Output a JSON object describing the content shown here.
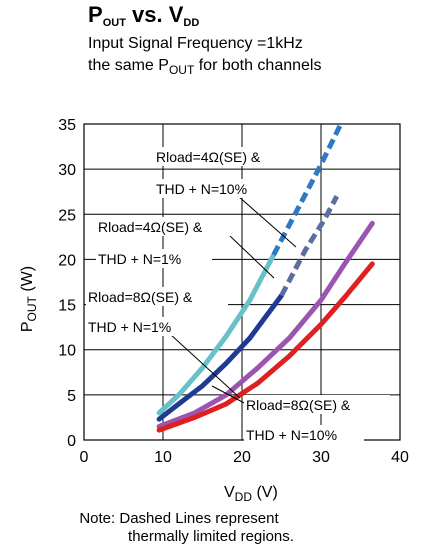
{
  "title": {
    "p": "P",
    "p_sub": "OUT",
    "vs": " vs. V",
    "v_sub": "DD"
  },
  "subtitle": {
    "line1": "Input Signal Frequency =1kHz",
    "line2_pre": "the same P",
    "line2_sub": "OUT",
    "line2_post": " for both channels"
  },
  "axis_labels": {
    "x_main": "V",
    "x_sub": "DD",
    "x_unit": " (V)",
    "y_main": "P",
    "y_sub": "OUT",
    "y_unit": " (W)"
  },
  "note": {
    "line1": "Note: Dashed Lines represent",
    "line2": "thermally limited regions."
  },
  "chart_data": {
    "type": "line",
    "title": "POUT vs. VDD",
    "subtitle": "Input Signal Frequency =1kHz, the same POUT for both channels",
    "xlabel": "VDD (V)",
    "ylabel": "POUT (W)",
    "xlim": [
      0,
      40
    ],
    "ylim": [
      0,
      35
    ],
    "xticks": [
      0,
      10,
      20,
      30,
      40
    ],
    "yticks": [
      0,
      5,
      10,
      15,
      20,
      25,
      30,
      35
    ],
    "grid": true,
    "series": [
      {
        "name": "Rload=4Ω(SE) & THD + N=10%",
        "color": "#66c2c8",
        "points": [
          [
            9.5,
            3.0
          ],
          [
            12,
            5.0
          ],
          [
            15,
            8.0
          ],
          [
            18,
            11.5
          ],
          [
            21,
            15.5
          ],
          [
            24,
            20.5
          ]
        ],
        "dashed_color": "#2f79c4",
        "dashed_points": [
          [
            24,
            20.5
          ],
          [
            27,
            25.5
          ],
          [
            30,
            30.5
          ],
          [
            32.5,
            35
          ]
        ]
      },
      {
        "name": "Rload=4Ω(SE) & THD + N=1%",
        "color": "#1f3a93",
        "points": [
          [
            9.5,
            2.3
          ],
          [
            12,
            4.0
          ],
          [
            15,
            6.0
          ],
          [
            18,
            8.5
          ],
          [
            21,
            11.3
          ],
          [
            25,
            16.0
          ]
        ],
        "dashed_color": "#5b6f9e",
        "dashed_points": [
          [
            25,
            16.0
          ],
          [
            28,
            21.0
          ],
          [
            30.5,
            24.5
          ],
          [
            32,
            27.0
          ]
        ]
      },
      {
        "name": "Rload=8Ω(SE) & THD + N=1%",
        "color": "#9b55b0",
        "points": [
          [
            9.5,
            1.5
          ],
          [
            14,
            3.0
          ],
          [
            18,
            5.0
          ],
          [
            22,
            8.0
          ],
          [
            26,
            11.3
          ],
          [
            30,
            15.5
          ],
          [
            33,
            19.5
          ],
          [
            36.5,
            24.0
          ]
        ]
      },
      {
        "name": "Rload=8Ω(SE) & THD + N=10%",
        "color": "#e02020",
        "points": [
          [
            9.5,
            1.1
          ],
          [
            14,
            2.5
          ],
          [
            18,
            4.0
          ],
          [
            22,
            6.3
          ],
          [
            26,
            9.3
          ],
          [
            30,
            12.8
          ],
          [
            33,
            15.8
          ],
          [
            36.5,
            19.5
          ]
        ]
      }
    ],
    "annotations": [
      {
        "line1": "Rload=4Ω(SE) &",
        "line2": "THD + N=10%"
      },
      {
        "line1": "Rload=4Ω(SE) &",
        "line2": "THD + N=1%"
      },
      {
        "line1": "Rload=8Ω(SE) &",
        "line2": "THD + N=1%"
      },
      {
        "line1": "Rload=8Ω(SE) &",
        "line2": "THD + N=10%"
      }
    ]
  }
}
